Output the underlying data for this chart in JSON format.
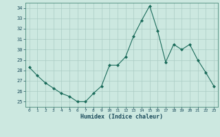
{
  "x": [
    0,
    1,
    2,
    3,
    4,
    5,
    6,
    7,
    8,
    9,
    10,
    11,
    12,
    13,
    14,
    15,
    16,
    17,
    18,
    19,
    20,
    21,
    22,
    23
  ],
  "y": [
    28.3,
    27.5,
    26.8,
    26.3,
    25.8,
    25.5,
    25.0,
    25.0,
    25.8,
    26.5,
    28.5,
    28.5,
    29.3,
    31.3,
    32.8,
    34.2,
    31.8,
    28.8,
    30.5,
    30.0,
    30.5,
    29.0,
    27.8,
    26.5
  ],
  "xlabel": "Humidex (Indice chaleur)",
  "ylim": [
    24.5,
    34.5
  ],
  "xlim": [
    -0.5,
    23.5
  ],
  "yticks": [
    25,
    26,
    27,
    28,
    29,
    30,
    31,
    32,
    33,
    34
  ],
  "xticks": [
    0,
    1,
    2,
    3,
    4,
    5,
    6,
    7,
    8,
    9,
    10,
    11,
    12,
    13,
    14,
    15,
    16,
    17,
    18,
    19,
    20,
    21,
    22,
    23
  ],
  "line_color": "#1a6b5a",
  "marker_color": "#1a6b5a",
  "bg_color": "#cce8e0",
  "grid_color": "#aaccc4",
  "tick_label_color": "#1a4a5a",
  "xlabel_color": "#1a4a5a",
  "border_color": "#4a8a7a"
}
